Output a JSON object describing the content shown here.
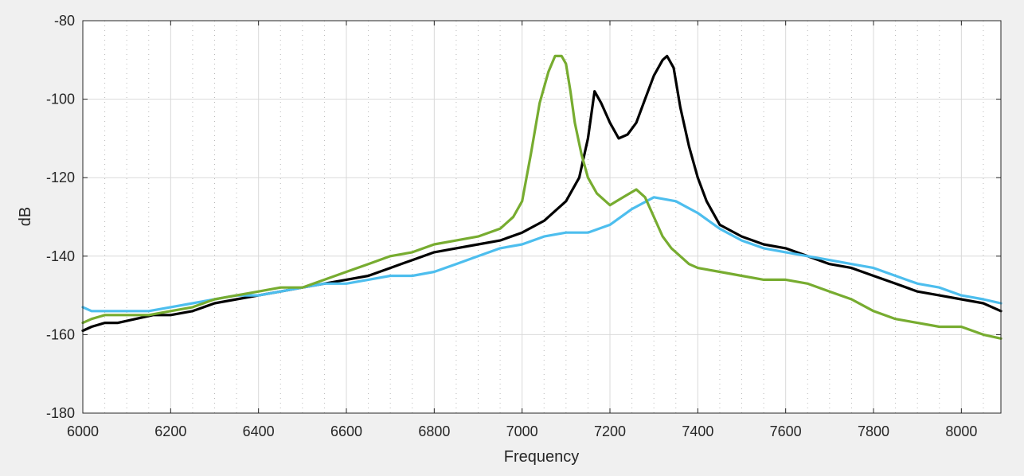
{
  "chart_data": {
    "type": "line",
    "title": "",
    "xlabel": "Frequency",
    "ylabel": "dB",
    "xlim": [
      6000,
      8090
    ],
    "ylim": [
      -180,
      -80
    ],
    "xticks": [
      6000,
      6200,
      6400,
      6600,
      6800,
      7000,
      7200,
      7400,
      7600,
      7800,
      8000
    ],
    "yticks": [
      -180,
      -160,
      -140,
      -120,
      -100,
      -80
    ],
    "grid": true,
    "minor_grid": true,
    "background": "#ffffff",
    "series": [
      {
        "color": "#000000",
        "x": [
          6000,
          6020,
          6050,
          6080,
          6120,
          6160,
          6200,
          6250,
          6300,
          6350,
          6400,
          6450,
          6500,
          6550,
          6600,
          6650,
          6700,
          6750,
          6800,
          6850,
          6900,
          6950,
          7000,
          7050,
          7100,
          7130,
          7150,
          7165,
          7180,
          7200,
          7220,
          7240,
          7260,
          7280,
          7300,
          7320,
          7330,
          7345,
          7360,
          7380,
          7400,
          7420,
          7450,
          7500,
          7550,
          7600,
          7650,
          7700,
          7750,
          7800,
          7850,
          7900,
          7950,
          8000,
          8050,
          8090
        ],
        "values": [
          -159,
          -158,
          -157,
          -157,
          -156,
          -155,
          -155,
          -154,
          -152,
          -151,
          -150,
          -149,
          -148,
          -147,
          -146,
          -145,
          -143,
          -141,
          -139,
          -138,
          -137,
          -136,
          -134,
          -131,
          -126,
          -120,
          -110,
          -98,
          -101,
          -106,
          -110,
          -109,
          -106,
          -100,
          -94,
          -90,
          -89,
          -92,
          -102,
          -112,
          -120,
          -126,
          -132,
          -135,
          -137,
          -138,
          -140,
          -142,
          -143,
          -145,
          -147,
          -149,
          -150,
          -151,
          -152,
          -154
        ]
      },
      {
        "color": "#4dbeee",
        "x": [
          6000,
          6020,
          6050,
          6100,
          6150,
          6200,
          6250,
          6300,
          6350,
          6400,
          6450,
          6500,
          6550,
          6600,
          6650,
          6700,
          6750,
          6800,
          6850,
          6900,
          6950,
          7000,
          7050,
          7100,
          7150,
          7200,
          7250,
          7300,
          7350,
          7400,
          7450,
          7500,
          7550,
          7600,
          7650,
          7700,
          7750,
          7800,
          7850,
          7900,
          7950,
          8000,
          8050,
          8090
        ],
        "values": [
          -153,
          -154,
          -154,
          -154,
          -154,
          -153,
          -152,
          -151,
          -150,
          -150,
          -149,
          -148,
          -147,
          -147,
          -146,
          -145,
          -145,
          -144,
          -142,
          -140,
          -138,
          -137,
          -135,
          -134,
          -134,
          -132,
          -128,
          -125,
          -126,
          -129,
          -133,
          -136,
          -138,
          -139,
          -140,
          -141,
          -142,
          -143,
          -145,
          -147,
          -148,
          -150,
          -151,
          -152
        ]
      },
      {
        "color": "#77ac30",
        "x": [
          6000,
          6020,
          6050,
          6100,
          6150,
          6200,
          6250,
          6300,
          6350,
          6400,
          6450,
          6500,
          6550,
          6600,
          6650,
          6700,
          6750,
          6800,
          6850,
          6900,
          6950,
          6980,
          7000,
          7020,
          7040,
          7060,
          7075,
          7090,
          7100,
          7110,
          7120,
          7135,
          7150,
          7170,
          7200,
          7230,
          7260,
          7280,
          7300,
          7320,
          7340,
          7360,
          7380,
          7400,
          7450,
          7500,
          7550,
          7600,
          7650,
          7700,
          7750,
          7800,
          7850,
          7900,
          7950,
          8000,
          8050,
          8090
        ],
        "values": [
          -157,
          -156,
          -155,
          -155,
          -155,
          -154,
          -153,
          -151,
          -150,
          -149,
          -148,
          -148,
          -146,
          -144,
          -142,
          -140,
          -139,
          -137,
          -136,
          -135,
          -133,
          -130,
          -126,
          -114,
          -101,
          -93,
          -89,
          -89,
          -91,
          -98,
          -106,
          -114,
          -120,
          -124,
          -127,
          -125,
          -123,
          -125,
          -130,
          -135,
          -138,
          -140,
          -142,
          -143,
          -144,
          -145,
          -146,
          -146,
          -147,
          -149,
          -151,
          -154,
          -156,
          -157,
          -158,
          -158,
          -160,
          -161
        ]
      }
    ]
  }
}
